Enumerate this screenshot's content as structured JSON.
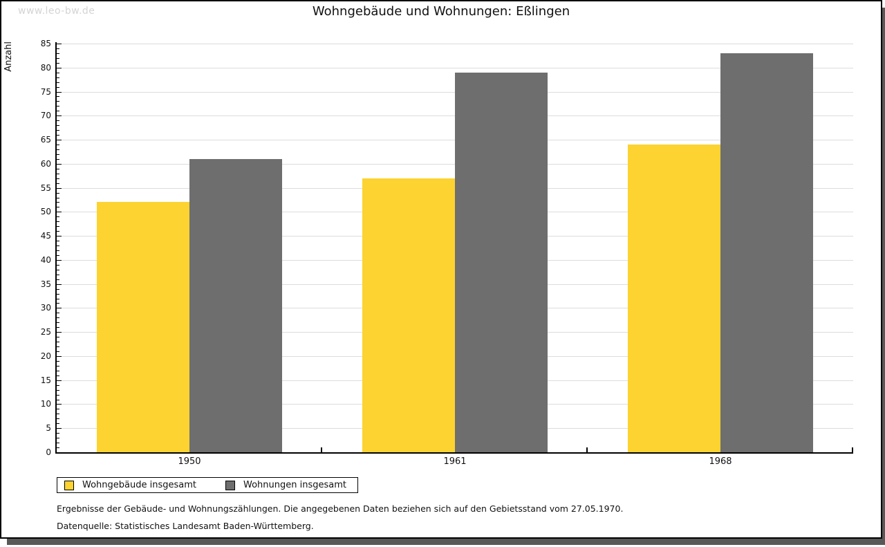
{
  "watermark": "www.leo-bw.de",
  "title": "Wohngebäude und Wohnungen: Eßlingen",
  "chart_data": {
    "type": "bar",
    "title": "Wohngebäude und Wohnungen: Eßlingen",
    "categories": [
      "1950",
      "1961",
      "1968"
    ],
    "series": [
      {
        "name": "Wohngebäude insgesamt",
        "color": "#FCD330",
        "values": [
          52,
          57,
          64
        ]
      },
      {
        "name": "Wohnungen insgesamt",
        "color": "#6E6E6E",
        "values": [
          61,
          79,
          83
        ]
      }
    ],
    "xlabel": "",
    "ylabel": "Anzahl",
    "ylim": [
      0,
      85
    ],
    "ytick_step": 5,
    "yminor_step": 1,
    "grid": true,
    "legend_position": "bottom-left",
    "colors": {
      "gridline": "#dcdcdc",
      "axis": "#000000",
      "background": "#ffffff",
      "shadow": "#585858",
      "watermark": "#d4d4d4"
    }
  },
  "footnotes": [
    "Ergebnisse der Gebäude- und Wohnungszählungen. Die angegebenen Daten beziehen sich auf den Gebietsstand vom 27.05.1970.",
    "Datenquelle: Statistisches Landesamt Baden-Württemberg."
  ]
}
